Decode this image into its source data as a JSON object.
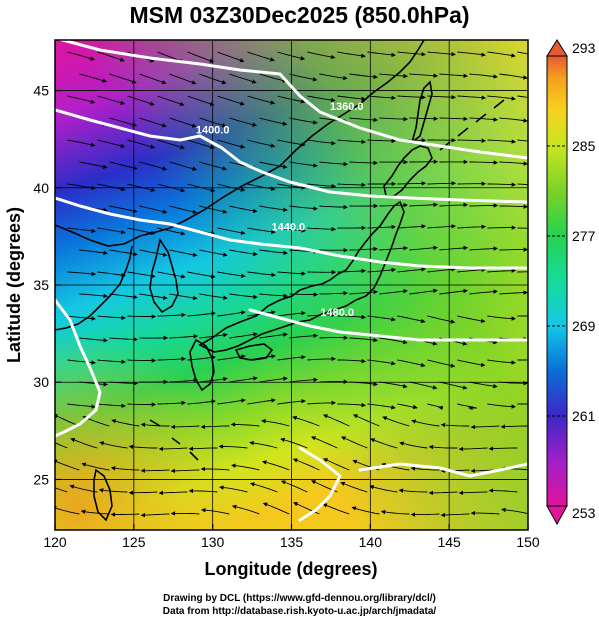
{
  "title": "MSM 03Z30Dec2025 (850.0hPa)",
  "x_axis": {
    "label": "Longitude (degrees)",
    "range": [
      120,
      150
    ],
    "ticks": [
      {
        "value": 120,
        "label": "120"
      },
      {
        "value": 125,
        "label": "125"
      },
      {
        "value": 130,
        "label": "130"
      },
      {
        "value": 135,
        "label": "135"
      },
      {
        "value": 140,
        "label": "140"
      },
      {
        "value": 145,
        "label": "145"
      },
      {
        "value": 150,
        "label": "150"
      }
    ]
  },
  "y_axis": {
    "label": "Latitude  (degrees)",
    "range": [
      22.4,
      47.6
    ],
    "ticks": [
      {
        "value": 25,
        "label": "25"
      },
      {
        "value": 30,
        "label": "30"
      },
      {
        "value": 35,
        "label": "35"
      },
      {
        "value": 40,
        "label": "40"
      },
      {
        "value": 45,
        "label": "45"
      }
    ]
  },
  "colorbar": {
    "min": 253,
    "max": 293,
    "ticks": [
      {
        "value": 253,
        "label": "253"
      },
      {
        "value": 261,
        "label": "261"
      },
      {
        "value": 269,
        "label": "269"
      },
      {
        "value": 277,
        "label": "277"
      },
      {
        "value": 285,
        "label": "285"
      },
      {
        "value": 293,
        "label": "293"
      }
    ],
    "colors": [
      "#e0149c",
      "#a020c8",
      "#3c28c8",
      "#0a6ed8",
      "#14c8e6",
      "#14dc9a",
      "#28d250",
      "#7ad228",
      "#c8e61e",
      "#f5d21e",
      "#f5a01e",
      "#e65a32"
    ]
  },
  "contour_labels": [
    {
      "text": "1360.0",
      "lon": 138.5,
      "lat": 44.0
    },
    {
      "text": "1400.0",
      "lon": 130.0,
      "lat": 42.8
    },
    {
      "text": "1440.0",
      "lon": 134.8,
      "lat": 37.8
    },
    {
      "text": "1480.0",
      "lon": 137.9,
      "lat": 33.4
    }
  ],
  "credits": {
    "line1": "Drawing by DCL (https://www.gfd-dennou.org/library/dcl/)",
    "line2": "Data from http://database.rish.kyoto-u.ac.jp/arch/jmadata/"
  }
}
